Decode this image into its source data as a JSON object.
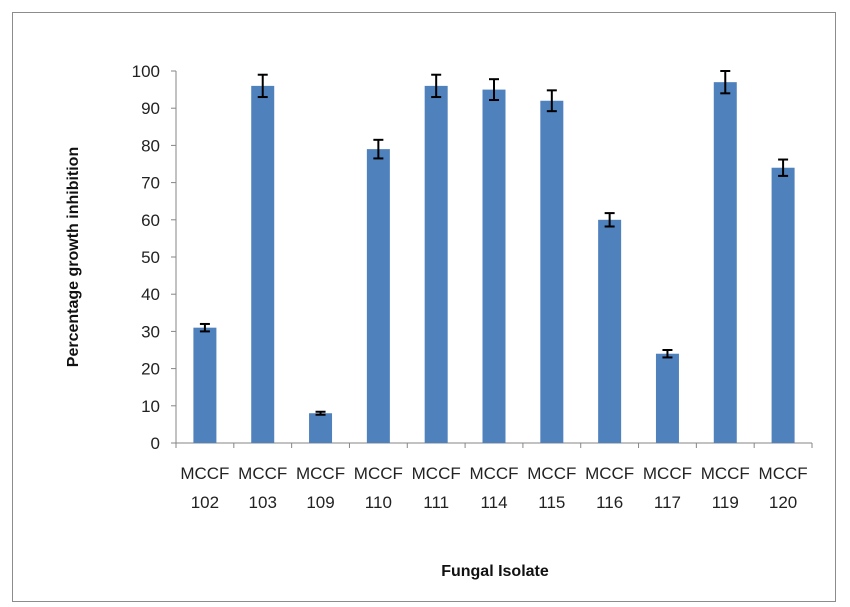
{
  "chart_data": {
    "type": "bar",
    "title": "",
    "xlabel": "Fungal Isolate",
    "ylabel": "Percentage growth inhibition",
    "ylim": [
      0,
      100
    ],
    "yticks": [
      0,
      10,
      20,
      30,
      40,
      50,
      60,
      70,
      80,
      90,
      100
    ],
    "categories": [
      [
        "MCCF",
        "102"
      ],
      [
        "MCCF",
        "103"
      ],
      [
        "MCCF",
        "109"
      ],
      [
        "MCCF",
        "110"
      ],
      [
        "MCCF",
        "111"
      ],
      [
        "MCCF",
        "114"
      ],
      [
        "MCCF",
        "115"
      ],
      [
        "MCCF",
        "116"
      ],
      [
        "MCCF",
        "117"
      ],
      [
        "MCCF",
        "119"
      ],
      [
        "MCCF",
        "120"
      ]
    ],
    "values": [
      31,
      96,
      8,
      79,
      96,
      95,
      92,
      60,
      24,
      97,
      74
    ],
    "errors": [
      1,
      3,
      0.4,
      2.5,
      3,
      2.8,
      2.8,
      1.8,
      1,
      3,
      2.2
    ],
    "bar_color": "#4f81bd",
    "grid": false,
    "legend": "none"
  }
}
